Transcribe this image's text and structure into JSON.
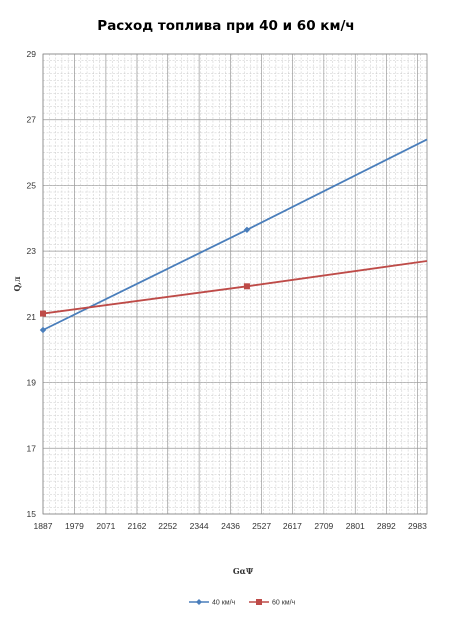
{
  "chart_data": {
    "type": "line",
    "title": "Расход топлива при 40 и 60 км/ч",
    "xlabel": "GαΨ",
    "ylabel": "Q,л",
    "xlim": [
      1887,
      3011
    ],
    "ylim": [
      15,
      29
    ],
    "x_ticks": [
      "1887",
      "1979",
      "2071",
      "2162",
      "2252",
      "2344",
      "2436",
      "2527",
      "2617",
      "2709",
      "2801",
      "2892",
      "2983"
    ],
    "y_ticks": [
      "15",
      "17",
      "19",
      "21",
      "23",
      "25",
      "27",
      "29"
    ],
    "grid": true,
    "legend_position": "bottom",
    "series": [
      {
        "name": "40 км/ч",
        "color": "#4a7ebb",
        "marker": "diamond",
        "points": [
          [
            1887,
            20.6
          ],
          [
            2484,
            23.65
          ]
        ],
        "x_end": 3011,
        "y_end": 26.4
      },
      {
        "name": "60 км/ч",
        "color": "#be4b48",
        "marker": "square",
        "points": [
          [
            1887,
            21.1
          ],
          [
            2484,
            21.93
          ]
        ],
        "x_end": 3011,
        "y_end": 22.7
      }
    ]
  }
}
